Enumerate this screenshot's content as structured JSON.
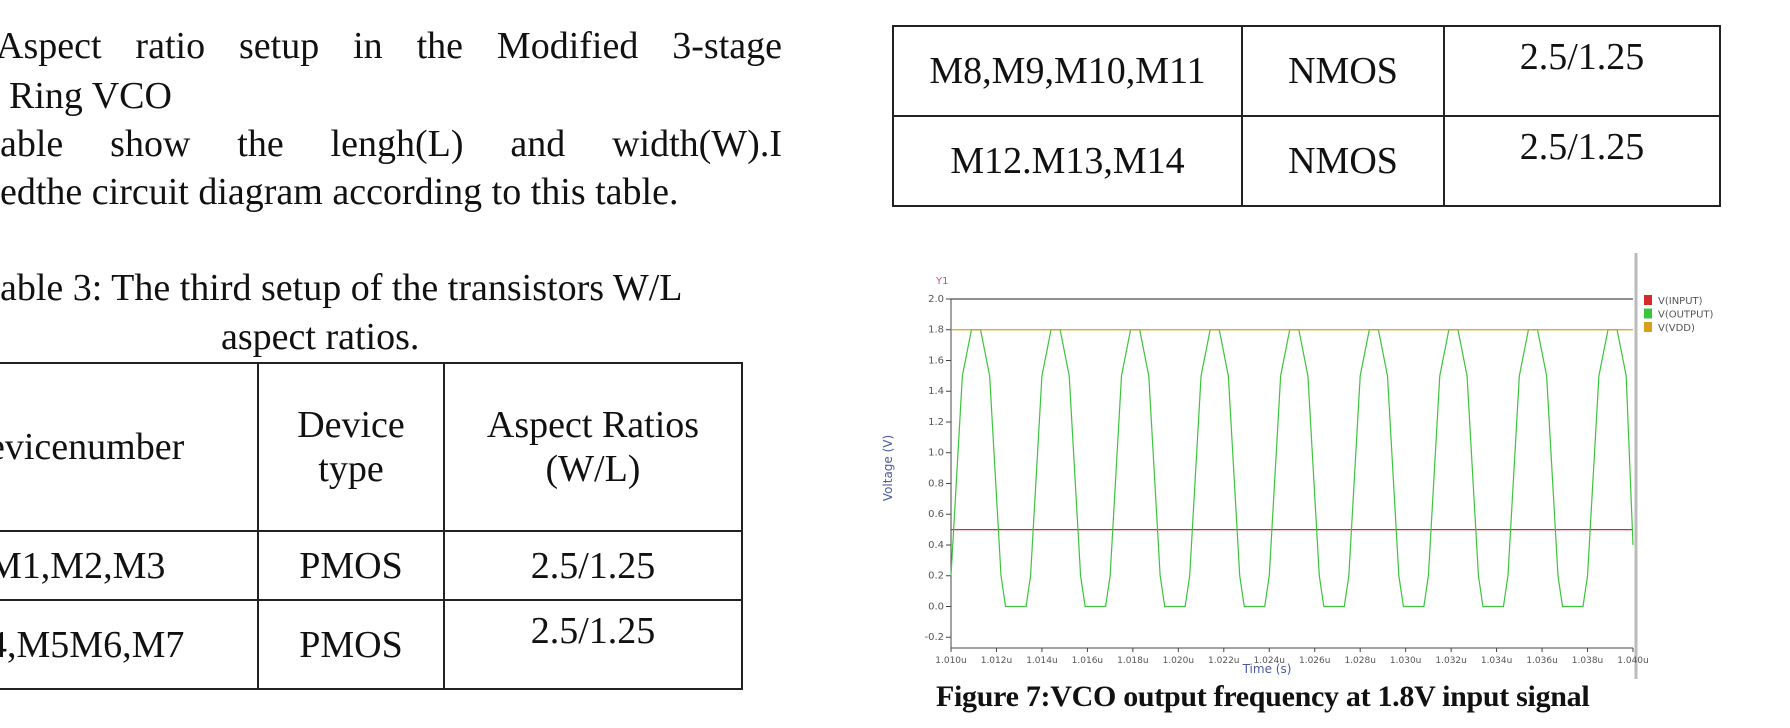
{
  "heading_lines": [
    "Aspect ratio setup in the Modified 3-stage",
    "Ring VCO"
  ],
  "paragraph_lines": [
    "able show the lengh(L) and  width(W).I",
    "edthe circuit diagram according to this table."
  ],
  "table_caption": [
    "able 3: The third setup of the transistors W/L",
    "aspect ratios."
  ],
  "left_table": {
    "header": [
      "evicenumber",
      "Device type",
      "Aspect Ratios (W/L)"
    ],
    "rows": [
      [
        "M1,M2,M3",
        "PMOS",
        "2.5/1.25"
      ],
      [
        "4,M5M6,M7",
        "PMOS",
        "2.5/1.25"
      ]
    ]
  },
  "right_table": {
    "rows": [
      [
        "M8,M9,M10,M11",
        "NMOS",
        "2.5/1.25"
      ],
      [
        "M12.M13,M14",
        "NMOS",
        "2.5/1.25"
      ]
    ]
  },
  "figure_caption": "Figure 7:VCO output frequency at 1.8V input signal",
  "chart_data": {
    "type": "line",
    "annotation": "Y1",
    "y_axis_label": "Voltage (V)",
    "x_axis_label": "Time (s)",
    "xlim": [
      1.01,
      1.04
    ],
    "ylim": [
      -0.27,
      2.0
    ],
    "xticks": [
      {
        "value": 1.01,
        "label": "1.010u"
      },
      {
        "value": 1.012,
        "label": "1.012u"
      },
      {
        "value": 1.014,
        "label": "1.014u"
      },
      {
        "value": 1.016,
        "label": "1.016u"
      },
      {
        "value": 1.018,
        "label": "1.018u"
      },
      {
        "value": 1.02,
        "label": "1.020u"
      },
      {
        "value": 1.022,
        "label": "1.022u"
      },
      {
        "value": 1.024,
        "label": "1.024u"
      },
      {
        "value": 1.026,
        "label": "1.026u"
      },
      {
        "value": 1.028,
        "label": "1.028u"
      },
      {
        "value": 1.03,
        "label": "1.030u"
      },
      {
        "value": 1.032,
        "label": "1.032u"
      },
      {
        "value": 1.034,
        "label": "1.034u"
      },
      {
        "value": 1.036,
        "label": "1.036u"
      },
      {
        "value": 1.038,
        "label": "1.038u"
      },
      {
        "value": 1.04,
        "label": "1.040u"
      }
    ],
    "yticks": [
      {
        "value": 2,
        "label": "2.0"
      },
      1.8,
      1.6,
      1.4,
      1.2,
      {
        "value": 1,
        "label": "1.0"
      },
      0.8,
      0.6,
      0.4,
      0.2,
      {
        "value": 0,
        "label": "0.0"
      },
      -0.2
    ],
    "series": [
      {
        "name": "V(INPUT)",
        "color": "#d42a2a",
        "x": [
          1.01,
          1.04
        ],
        "values": [
          0.5,
          0.5
        ]
      },
      {
        "name": "V(OUTPUT)",
        "color": "#3cc43c",
        "x": [
          1.01,
          1.0105,
          1.0109,
          1.0113,
          1.0117,
          1.0122,
          1.0124,
          1.0133,
          1.0135,
          1.014,
          1.0144,
          1.0148,
          1.0152,
          1.0157,
          1.0159,
          1.0168,
          1.017,
          1.0175,
          1.0179,
          1.0183,
          1.0187,
          1.0192,
          1.0194,
          1.0203,
          1.0205,
          1.021,
          1.0214,
          1.0218,
          1.0222,
          1.0227,
          1.0229,
          1.0238,
          1.024,
          1.0245,
          1.0249,
          1.0253,
          1.0257,
          1.0262,
          1.0264,
          1.0273,
          1.0275,
          1.028,
          1.0284,
          1.0288,
          1.0292,
          1.0297,
          1.0299,
          1.0308,
          1.031,
          1.0315,
          1.0319,
          1.0323,
          1.0327,
          1.0332,
          1.0334,
          1.0343,
          1.0345,
          1.035,
          1.0354,
          1.0358,
          1.0362,
          1.0367,
          1.0369,
          1.0378,
          1.038,
          1.0385,
          1.0389,
          1.0393,
          1.0397,
          1.04
        ],
        "values": [
          0.2,
          1.5,
          1.8,
          1.8,
          1.5,
          0.2,
          0,
          0,
          0.2,
          1.5,
          1.8,
          1.8,
          1.5,
          0.2,
          0,
          0,
          0.2,
          1.5,
          1.8,
          1.8,
          1.5,
          0.2,
          0,
          0,
          0.2,
          1.5,
          1.8,
          1.8,
          1.5,
          0.2,
          0,
          0,
          0.2,
          1.5,
          1.8,
          1.8,
          1.5,
          0.2,
          0,
          0,
          0.2,
          1.5,
          1.8,
          1.8,
          1.5,
          0.2,
          0,
          0,
          0.2,
          1.5,
          1.8,
          1.8,
          1.5,
          0.2,
          0,
          0,
          0.2,
          1.5,
          1.8,
          1.8,
          1.5,
          0.2,
          0,
          0,
          0.2,
          1.5,
          1.8,
          1.8,
          1.5,
          0.4
        ]
      },
      {
        "name": "V(VDD)",
        "color": "#d9a020",
        "x": [
          1.01,
          1.04
        ],
        "values": [
          1.8,
          1.8
        ]
      }
    ]
  }
}
